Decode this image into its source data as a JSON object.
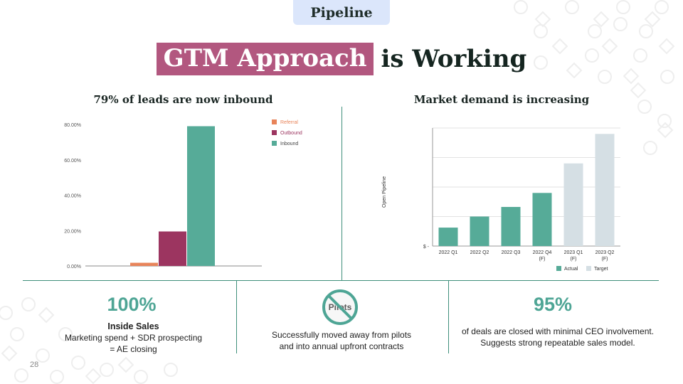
{
  "header": {
    "tag": "Pipeline",
    "title_highlight": "GTM Approach",
    "title_rest": "is Working"
  },
  "left": {
    "subtitle": "79% of leads are now inbound",
    "chart_data": {
      "type": "bar",
      "series": [
        {
          "name": "Referral",
          "values": [
            1.8
          ]
        },
        {
          "name": "Outbound",
          "values": [
            19.5
          ]
        },
        {
          "name": "Inbound",
          "values": [
            79
          ]
        }
      ],
      "ylim": [
        0,
        80
      ],
      "yticks": [
        "80.00%",
        "60.00%",
        "40.00%",
        "20.00%",
        "0.00%"
      ],
      "colors": {
        "Referral": "#e8845a",
        "Outbound": "#9c3560",
        "Inbound": "#56ab98"
      },
      "legend": "top-right"
    }
  },
  "right": {
    "subtitle": "Market demand is increasing",
    "chart_data": {
      "type": "bar",
      "categories": [
        "2022 Q1",
        "2022 Q2",
        "2022 Q3",
        "2022 Q4 (F)",
        "2023 Q1 (F)",
        "2023 Q2 (F)"
      ],
      "category_lines": [
        [
          "2022 Q1"
        ],
        [
          "2022 Q2"
        ],
        [
          "2022 Q3"
        ],
        [
          "2022 Q4",
          "(F)"
        ],
        [
          "2023 Q1",
          "(F)"
        ],
        [
          "2023 Q2",
          "(F)"
        ]
      ],
      "values": [
        25,
        40,
        53,
        72,
        112,
        152
      ],
      "series_of_bar": [
        "Actual",
        "Actual",
        "Actual",
        "Actual",
        "Target",
        "Target"
      ],
      "legend_items": [
        "Actual",
        "Target"
      ],
      "colors": {
        "Actual": "#56ab98",
        "Target": "#d5dfe4"
      },
      "ylabel": "Open Pipeline",
      "ytick": "$ -",
      "ylim": [
        0,
        160
      ],
      "grid": true,
      "legend": "bottom"
    }
  },
  "stats": [
    {
      "big": "100%",
      "title": "Inside Sales",
      "line1": "Marketing spend + SDR prospecting",
      "line2": "= AE closing"
    },
    {
      "icon": "no-pilots-icon",
      "icon_text": "Pilots",
      "line1": "Successfully moved away from pilots",
      "line2": "and into annual upfront contracts"
    },
    {
      "big": "95%",
      "line1": "of deals are closed with minimal CEO involvement.",
      "line2": "Suggests strong repeatable sales model."
    }
  ],
  "page_number": "28",
  "colors": {
    "accent": "#4ea595",
    "highlight": "#b2577f",
    "pill": "#dbe6fb",
    "divider": "#3f8f7b"
  }
}
